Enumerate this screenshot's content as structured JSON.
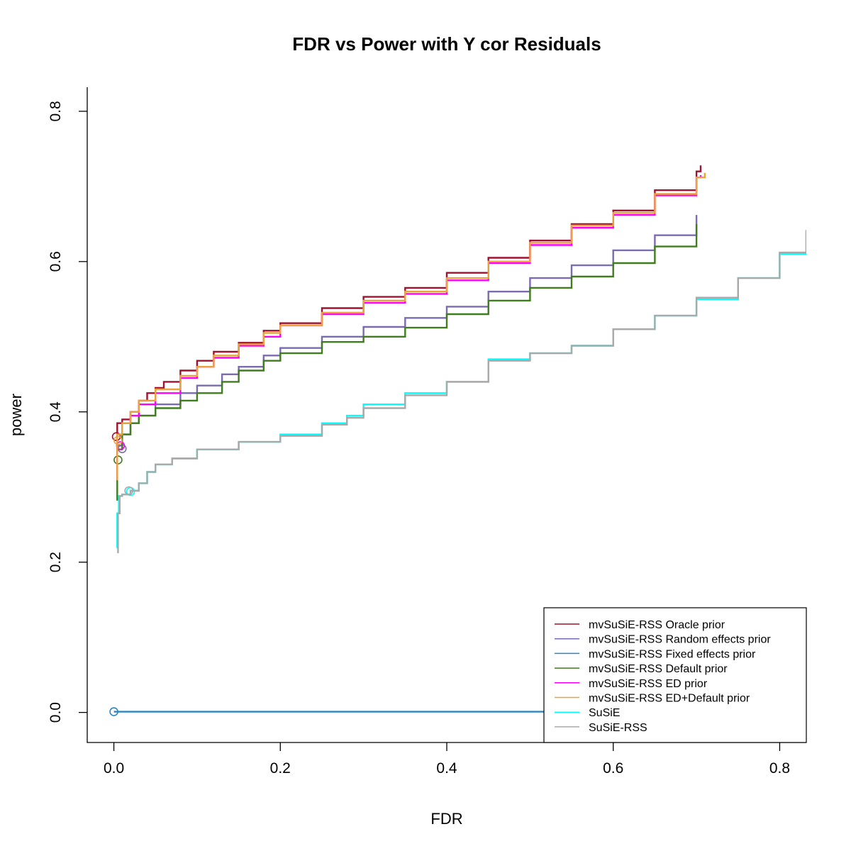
{
  "chart_data": {
    "type": "line",
    "title": "FDR vs Power with Y cor Residuals",
    "xlabel": "FDR",
    "ylabel": "power",
    "xlim": [
      -0.032,
      0.832
    ],
    "ylim": [
      -0.04,
      0.832
    ],
    "x_ticks": [
      0.0,
      0.2,
      0.4,
      0.6,
      0.8
    ],
    "x_tick_labels": [
      "0.0",
      "0.2",
      "0.4",
      "0.6",
      "0.8"
    ],
    "y_ticks": [
      0.0,
      0.2,
      0.4,
      0.6,
      0.8
    ],
    "y_tick_labels": [
      "0.0",
      "0.2",
      "0.4",
      "0.6",
      "0.8"
    ],
    "grid": false,
    "legend_position": "bottom-right",
    "series": [
      {
        "name": "mvSuSiE-RSS Oracle prior",
        "color": "#a0122f",
        "points": [
          [
            0.003,
            0.31
          ],
          [
            0.004,
            0.385
          ],
          [
            0.01,
            0.39
          ],
          [
            0.02,
            0.4
          ],
          [
            0.03,
            0.415
          ],
          [
            0.04,
            0.425
          ],
          [
            0.05,
            0.432
          ],
          [
            0.06,
            0.44
          ],
          [
            0.08,
            0.455
          ],
          [
            0.1,
            0.468
          ],
          [
            0.12,
            0.48
          ],
          [
            0.15,
            0.492
          ],
          [
            0.18,
            0.508
          ],
          [
            0.2,
            0.518
          ],
          [
            0.25,
            0.538
          ],
          [
            0.3,
            0.553
          ],
          [
            0.35,
            0.565
          ],
          [
            0.4,
            0.585
          ],
          [
            0.45,
            0.605
          ],
          [
            0.5,
            0.628
          ],
          [
            0.55,
            0.65
          ],
          [
            0.6,
            0.668
          ],
          [
            0.65,
            0.695
          ],
          [
            0.7,
            0.72
          ],
          [
            0.705,
            0.728
          ]
        ],
        "markers": [
          [
            0.003,
            0.367
          ]
        ]
      },
      {
        "name": "mvSuSiE-RSS Random effects prior",
        "color": "#7b6bb0",
        "points": [
          [
            0.003,
            0.31
          ],
          [
            0.004,
            0.355
          ],
          [
            0.01,
            0.37
          ],
          [
            0.02,
            0.385
          ],
          [
            0.03,
            0.395
          ],
          [
            0.05,
            0.41
          ],
          [
            0.08,
            0.425
          ],
          [
            0.1,
            0.435
          ],
          [
            0.13,
            0.45
          ],
          [
            0.15,
            0.46
          ],
          [
            0.18,
            0.475
          ],
          [
            0.2,
            0.485
          ],
          [
            0.25,
            0.5
          ],
          [
            0.3,
            0.513
          ],
          [
            0.35,
            0.525
          ],
          [
            0.4,
            0.54
          ],
          [
            0.45,
            0.56
          ],
          [
            0.5,
            0.578
          ],
          [
            0.55,
            0.595
          ],
          [
            0.6,
            0.615
          ],
          [
            0.65,
            0.635
          ],
          [
            0.7,
            0.662
          ]
        ],
        "markers": [
          [
            0.01,
            0.351
          ]
        ]
      },
      {
        "name": "mvSuSiE-RSS Fixed effects prior",
        "color": "#2e86c1",
        "points": [
          [
            0.0,
            0.001
          ],
          [
            0.2,
            0.001
          ],
          [
            0.4,
            0.001
          ],
          [
            0.6,
            0.001
          ],
          [
            0.832,
            0.002
          ]
        ],
        "markers": [
          [
            0.0,
            0.001
          ]
        ]
      },
      {
        "name": "mvSuSiE-RSS Default prior",
        "color": "#3f7d1e",
        "points": [
          [
            0.003,
            0.283
          ],
          [
            0.004,
            0.35
          ],
          [
            0.01,
            0.37
          ],
          [
            0.02,
            0.385
          ],
          [
            0.03,
            0.395
          ],
          [
            0.05,
            0.405
          ],
          [
            0.08,
            0.415
          ],
          [
            0.1,
            0.425
          ],
          [
            0.13,
            0.44
          ],
          [
            0.15,
            0.455
          ],
          [
            0.18,
            0.468
          ],
          [
            0.2,
            0.478
          ],
          [
            0.25,
            0.493
          ],
          [
            0.3,
            0.5
          ],
          [
            0.35,
            0.512
          ],
          [
            0.4,
            0.53
          ],
          [
            0.45,
            0.548
          ],
          [
            0.5,
            0.565
          ],
          [
            0.55,
            0.58
          ],
          [
            0.6,
            0.598
          ],
          [
            0.65,
            0.62
          ],
          [
            0.7,
            0.65
          ]
        ],
        "markers": [
          [
            0.005,
            0.336
          ]
        ]
      },
      {
        "name": "mvSuSiE-RSS ED prior",
        "color": "#ff00ff",
        "points": [
          [
            0.003,
            0.31
          ],
          [
            0.004,
            0.37
          ],
          [
            0.01,
            0.385
          ],
          [
            0.02,
            0.395
          ],
          [
            0.03,
            0.41
          ],
          [
            0.05,
            0.425
          ],
          [
            0.08,
            0.445
          ],
          [
            0.1,
            0.46
          ],
          [
            0.12,
            0.472
          ],
          [
            0.15,
            0.488
          ],
          [
            0.18,
            0.5
          ],
          [
            0.2,
            0.515
          ],
          [
            0.25,
            0.53
          ],
          [
            0.3,
            0.545
          ],
          [
            0.35,
            0.557
          ],
          [
            0.4,
            0.575
          ],
          [
            0.45,
            0.598
          ],
          [
            0.5,
            0.622
          ],
          [
            0.55,
            0.645
          ],
          [
            0.6,
            0.662
          ],
          [
            0.65,
            0.688
          ],
          [
            0.7,
            0.712
          ],
          [
            0.705,
            0.715
          ]
        ],
        "markers": [
          [
            0.008,
            0.355
          ]
        ]
      },
      {
        "name": "mvSuSiE-RSS ED+Default prior",
        "color": "#e8a33d",
        "points": [
          [
            0.003,
            0.31
          ],
          [
            0.004,
            0.37
          ],
          [
            0.01,
            0.385
          ],
          [
            0.02,
            0.4
          ],
          [
            0.03,
            0.415
          ],
          [
            0.05,
            0.43
          ],
          [
            0.08,
            0.448
          ],
          [
            0.1,
            0.46
          ],
          [
            0.12,
            0.475
          ],
          [
            0.15,
            0.49
          ],
          [
            0.18,
            0.505
          ],
          [
            0.2,
            0.515
          ],
          [
            0.25,
            0.532
          ],
          [
            0.3,
            0.548
          ],
          [
            0.35,
            0.56
          ],
          [
            0.4,
            0.578
          ],
          [
            0.45,
            0.6
          ],
          [
            0.5,
            0.625
          ],
          [
            0.55,
            0.648
          ],
          [
            0.6,
            0.665
          ],
          [
            0.65,
            0.69
          ],
          [
            0.7,
            0.712
          ],
          [
            0.71,
            0.718
          ]
        ],
        "markers": [
          [
            0.005,
            0.362
          ]
        ]
      },
      {
        "name": "SuSiE",
        "color": "#00ffff",
        "points": [
          [
            0.003,
            0.22
          ],
          [
            0.004,
            0.265
          ],
          [
            0.006,
            0.288
          ],
          [
            0.01,
            0.29
          ],
          [
            0.02,
            0.295
          ],
          [
            0.03,
            0.305
          ],
          [
            0.04,
            0.32
          ],
          [
            0.05,
            0.33
          ],
          [
            0.07,
            0.338
          ],
          [
            0.1,
            0.35
          ],
          [
            0.15,
            0.36
          ],
          [
            0.2,
            0.37
          ],
          [
            0.25,
            0.385
          ],
          [
            0.28,
            0.395
          ],
          [
            0.3,
            0.41
          ],
          [
            0.35,
            0.425
          ],
          [
            0.4,
            0.44
          ],
          [
            0.45,
            0.47
          ],
          [
            0.5,
            0.478
          ],
          [
            0.55,
            0.488
          ],
          [
            0.6,
            0.51
          ],
          [
            0.65,
            0.528
          ],
          [
            0.7,
            0.55
          ],
          [
            0.75,
            0.578
          ],
          [
            0.8,
            0.61
          ],
          [
            0.832,
            0.64
          ]
        ],
        "markers": [
          [
            0.02,
            0.294
          ]
        ]
      },
      {
        "name": "SuSiE-RSS",
        "color": "#a9a9a9",
        "points": [
          [
            0.004,
            0.213
          ],
          [
            0.005,
            0.265
          ],
          [
            0.007,
            0.288
          ],
          [
            0.01,
            0.29
          ],
          [
            0.02,
            0.295
          ],
          [
            0.03,
            0.305
          ],
          [
            0.04,
            0.32
          ],
          [
            0.05,
            0.33
          ],
          [
            0.07,
            0.338
          ],
          [
            0.1,
            0.35
          ],
          [
            0.15,
            0.36
          ],
          [
            0.2,
            0.368
          ],
          [
            0.25,
            0.383
          ],
          [
            0.28,
            0.392
          ],
          [
            0.3,
            0.405
          ],
          [
            0.35,
            0.422
          ],
          [
            0.4,
            0.44
          ],
          [
            0.45,
            0.468
          ],
          [
            0.5,
            0.478
          ],
          [
            0.55,
            0.488
          ],
          [
            0.6,
            0.51
          ],
          [
            0.65,
            0.528
          ],
          [
            0.7,
            0.552
          ],
          [
            0.75,
            0.578
          ],
          [
            0.8,
            0.612
          ],
          [
            0.832,
            0.642
          ]
        ],
        "markers": [
          [
            0.018,
            0.295
          ]
        ]
      }
    ]
  }
}
